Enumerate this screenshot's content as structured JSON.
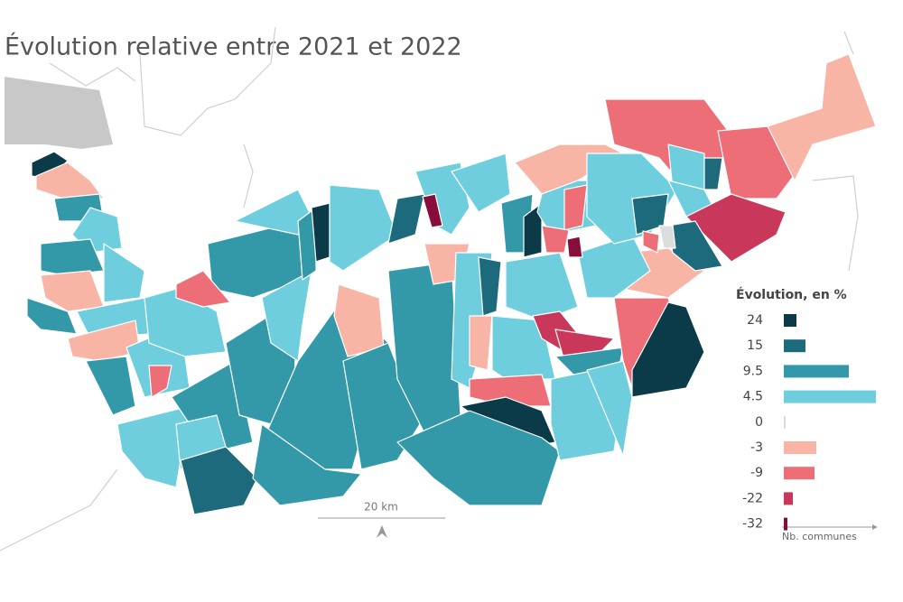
{
  "title": "Évolution relative entre 2021 et 2022",
  "scale_label": "20 km",
  "legend": {
    "title": "Évolution, en %",
    "axis_label": "Nb. communes",
    "classes": [
      {
        "value": 24,
        "color": "#0b3a48",
        "count": 7
      },
      {
        "value": 15,
        "color": "#1c6a7c",
        "count": 12
      },
      {
        "value": 9.5,
        "color": "#3399a8",
        "count": 36
      },
      {
        "value": 4.5,
        "color": "#6ecede",
        "count": 51
      },
      {
        "value": 0,
        "color": "#dcdcdc",
        "count": 1
      },
      {
        "value": -3,
        "color": "#f8b5a6",
        "count": 18
      },
      {
        "value": -9,
        "color": "#ee6e77",
        "count": 17
      },
      {
        "value": -22,
        "color": "#c9385a",
        "count": 5
      },
      {
        "value": -32,
        "color": "#880d3a",
        "count": 2
      }
    ]
  }
}
